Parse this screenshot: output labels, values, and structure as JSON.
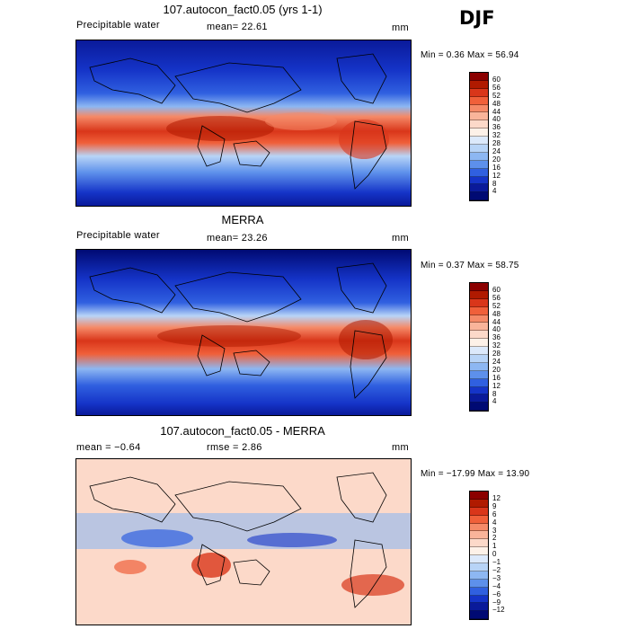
{
  "season": "DJF",
  "panels": [
    {
      "title": "107.autocon_fact0.05 (yrs 1-1)",
      "left_label": "Precipitable water",
      "center_label": "mean=  22.61",
      "units": "mm",
      "stats": "Min =    0.36 Max =   56.94",
      "colorbar": {
        "ticks": [
          "60",
          "56",
          "52",
          "48",
          "44",
          "40",
          "36",
          "32",
          "28",
          "24",
          "20",
          "16",
          "12",
          "8",
          "4"
        ],
        "colors": [
          "#8b0000",
          "#b01a00",
          "#d9361a",
          "#f0603a",
          "#f58a68",
          "#f9b49a",
          "#fcd9c9",
          "#fdf1e8",
          "#dce9fb",
          "#b8d4f7",
          "#8db7f2",
          "#5d90eb",
          "#3060e0",
          "#1534c8",
          "#0a1a9a",
          "#000a73"
        ]
      }
    },
    {
      "title": "MERRA",
      "left_label": "Precipitable water",
      "center_label": "mean=  23.26",
      "units": "mm",
      "stats": "Min =   0.37 Max =  58.75",
      "colorbar": {
        "ticks": [
          "60",
          "56",
          "52",
          "48",
          "44",
          "40",
          "36",
          "32",
          "28",
          "24",
          "20",
          "16",
          "12",
          "8",
          "4"
        ],
        "colors": [
          "#8b0000",
          "#b01a00",
          "#d9361a",
          "#f0603a",
          "#f58a68",
          "#f9b49a",
          "#fcd9c9",
          "#fdf1e8",
          "#dce9fb",
          "#b8d4f7",
          "#8db7f2",
          "#5d90eb",
          "#3060e0",
          "#1534c8",
          "#0a1a9a",
          "#000a73"
        ]
      }
    },
    {
      "title": "107.autocon_fact0.05 - MERRA",
      "left_label": "mean =   −0.64",
      "center_label": "rmse =    2.86",
      "units": "mm",
      "stats": "Min = −17.99 Max =   13.90",
      "colorbar": {
        "ticks": [
          "12",
          "9",
          "6",
          "4",
          "3",
          "2",
          "1",
          "0",
          "−1",
          "−2",
          "−3",
          "−4",
          "−6",
          "−9",
          "−12"
        ],
        "colors": [
          "#8b0000",
          "#b01a00",
          "#d9361a",
          "#f0603a",
          "#f58a68",
          "#f9b49a",
          "#fcd9c9",
          "#fdf1e8",
          "#dce9fb",
          "#b8d4f7",
          "#8db7f2",
          "#5d90eb",
          "#3060e0",
          "#1534c8",
          "#0a1a9a",
          "#000a73"
        ]
      }
    }
  ]
}
